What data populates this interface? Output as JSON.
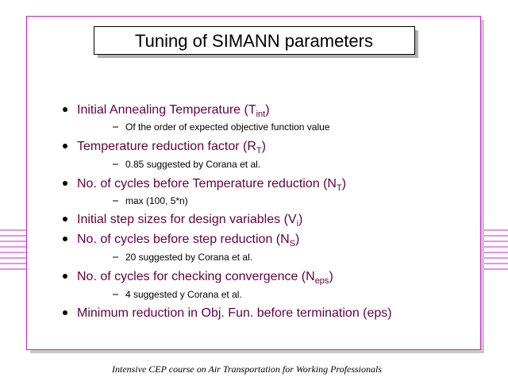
{
  "title": "Tuning of SIMANN parameters",
  "bullets": [
    {
      "text": "Initial Annealing Temperature (T",
      "sub": "int",
      "tail": ")",
      "note": "Of  the order of expected objective function value"
    },
    {
      "text": "Temperature reduction factor (R",
      "sub": "T",
      "tail": ")",
      "note": "0.85 suggested by Corana et al."
    },
    {
      "text": "No. of cycles before Temperature reduction (N",
      "sub": "T",
      "tail": ")",
      "note": "max (100, 5*n)"
    },
    {
      "text": "Initial step sizes for design variables (V",
      "sub": "i",
      "tail": ")"
    },
    {
      "text": "No. of cycles before step reduction (N",
      "sub": "S",
      "tail": ")",
      "note": "20 suggested by Corana et al."
    },
    {
      "text": "No. of cycles for checking convergence (N",
      "sub": "eps",
      "tail": ")",
      "note": "4 suggested y Corana et al."
    },
    {
      "text": "Minimum reduction in Obj. Fun. before termination (eps)"
    }
  ],
  "footer": "Intensive CEP course on Air Transportation for Working  Professionals"
}
